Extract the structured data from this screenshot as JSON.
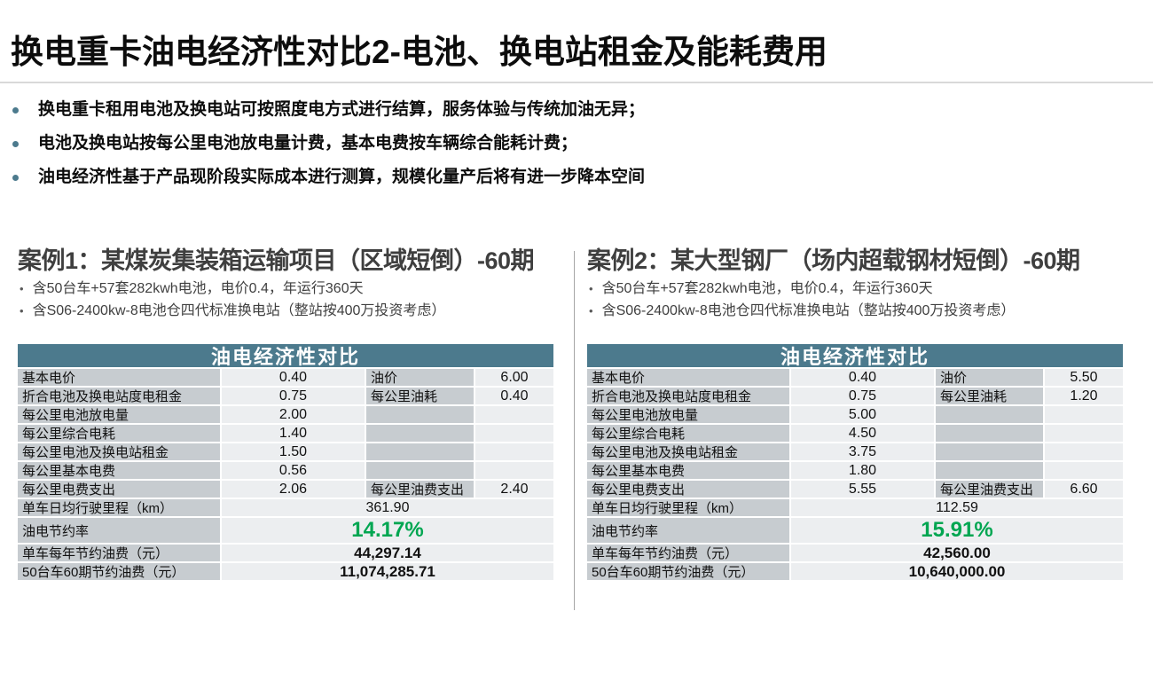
{
  "slide": {
    "title": "换电重卡油电经济性对比2-电池、换电站租金及能耗费用",
    "bullets": [
      "换电重卡租用电池及换电站可按照度电方式进行结算，服务体验与传统加油无异；",
      "电池及换电站按每公里电池放电量计费，基本电费按车辆综合能耗计费；",
      "油电经济性基于产品现阶段实际成本进行测算，规模化量产后将有进一步降本空间"
    ],
    "colors": {
      "accent_teal": "#4c7a8d",
      "table_label_gray": "#c7ccd0",
      "table_value_gray": "#eceef0",
      "savings_green": "#00a651"
    }
  },
  "cases": [
    {
      "heading": "案例1：某煤炭集装箱运输项目（区域短倒）-60期",
      "notes": [
        "含50台车+57套282kwh电池，电价0.4，年运行360天",
        "含S06-2400kw-8电池仓四代标准换电站（整站按400万投资考虑）"
      ],
      "table": {
        "title": "油电经济性对比",
        "rows": [
          {
            "label": "基本电价",
            "value": "0.40",
            "label2": "油价",
            "value2": "6.00"
          },
          {
            "label": "折合电池及换电站度电租金",
            "value": "0.75",
            "label2": "每公里油耗",
            "value2": "0.40"
          },
          {
            "label": "每公里电池放电量",
            "value": "2.00",
            "label2": "",
            "value2": ""
          },
          {
            "label": "每公里综合电耗",
            "value": "1.40",
            "label2": "",
            "value2": ""
          },
          {
            "label": "每公里电池及换电站租金",
            "value": "1.50",
            "label2": "",
            "value2": ""
          },
          {
            "label": "每公里基本电费",
            "value": "0.56",
            "label2": "",
            "value2": ""
          },
          {
            "label": "每公里电费支出",
            "value": "2.06",
            "label2": "每公里油费支出",
            "value2": "2.40"
          }
        ],
        "mileage": {
          "label": "单车日均行驶里程（km）",
          "value": "361.90"
        },
        "saving_rate": {
          "label": "油电节约率",
          "value": "14.17%"
        },
        "annual_saving": {
          "label": "单车每年节约油费（元）",
          "value": "44,297.14"
        },
        "total_saving": {
          "label": "50台车60期节约油费（元）",
          "value": "11,074,285.71"
        }
      }
    },
    {
      "heading": "案例2：某大型钢厂（场内超载钢材短倒）-60期",
      "notes": [
        "含50台车+57套282kwh电池，电价0.4，年运行360天",
        "含S06-2400kw-8电池仓四代标准换电站（整站按400万投资考虑）"
      ],
      "table": {
        "title": "油电经济性对比",
        "rows": [
          {
            "label": "基本电价",
            "value": "0.40",
            "label2": "油价",
            "value2": "5.50"
          },
          {
            "label": "折合电池及换电站度电租金",
            "value": "0.75",
            "label2": "每公里油耗",
            "value2": "1.20"
          },
          {
            "label": "每公里电池放电量",
            "value": "5.00",
            "label2": "",
            "value2": ""
          },
          {
            "label": "每公里综合电耗",
            "value": "4.50",
            "label2": "",
            "value2": ""
          },
          {
            "label": "每公里电池及换电站租金",
            "value": "3.75",
            "label2": "",
            "value2": ""
          },
          {
            "label": "每公里基本电费",
            "value": "1.80",
            "label2": "",
            "value2": ""
          },
          {
            "label": "每公里电费支出",
            "value": "5.55",
            "label2": "每公里油费支出",
            "value2": "6.60"
          }
        ],
        "mileage": {
          "label": "单车日均行驶里程（km）",
          "value": "112.59"
        },
        "saving_rate": {
          "label": "油电节约率",
          "value": "15.91%"
        },
        "annual_saving": {
          "label": "单车每年节约油费（元）",
          "value": "42,560.00"
        },
        "total_saving": {
          "label": "50台车60期节约油费（元）",
          "value": "10,640,000.00"
        }
      }
    }
  ]
}
